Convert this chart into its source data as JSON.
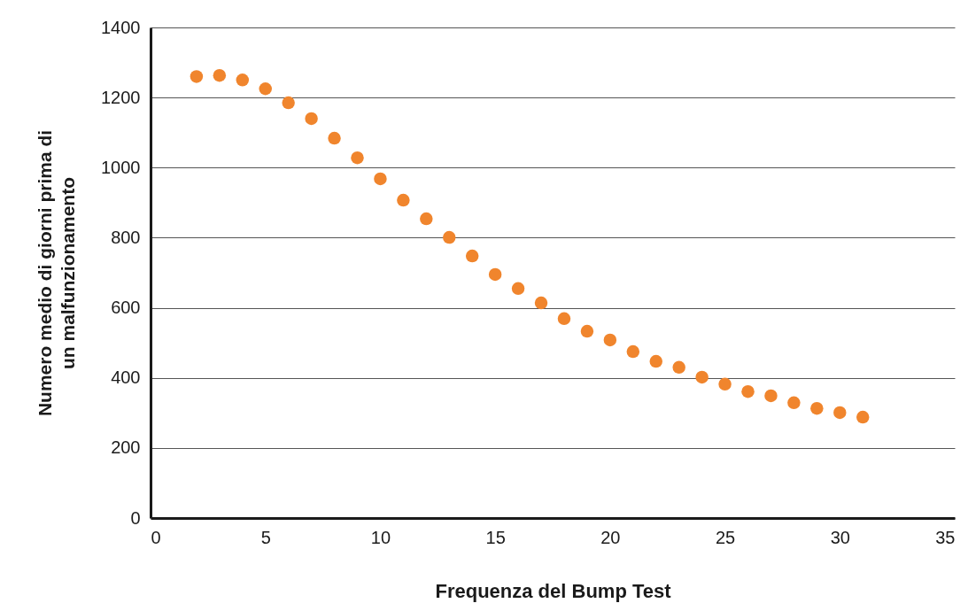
{
  "chart_data": {
    "type": "scatter",
    "xlabel": "Frequenza del Bump Test",
    "ylabel": "Numero medio di giorni prima di\nun malfunzionamento",
    "x": [
      2,
      3,
      4,
      5,
      6,
      7,
      8,
      9,
      10,
      11,
      12,
      13,
      14,
      15,
      16,
      17,
      18,
      19,
      20,
      21,
      22,
      23,
      24,
      25,
      26,
      27,
      28,
      29,
      30,
      31
    ],
    "series": [
      {
        "color": "#f0852d",
        "values": [
          1260,
          1263,
          1250,
          1225,
          1185,
          1140,
          1084,
          1028,
          968,
          907,
          854,
          801,
          748,
          695,
          655,
          614,
          569,
          533,
          508,
          475,
          447,
          430,
          402,
          382,
          361,
          349,
          329,
          313,
          301,
          288
        ]
      }
    ],
    "xlim": [
      0,
      35
    ],
    "xticks": [
      0,
      5,
      10,
      15,
      20,
      25,
      30,
      35
    ],
    "ylim": [
      0,
      1400
    ],
    "yticks": [
      0,
      200,
      400,
      600,
      800,
      1000,
      1200,
      1400
    ],
    "grid": "y",
    "marker": "circle"
  }
}
